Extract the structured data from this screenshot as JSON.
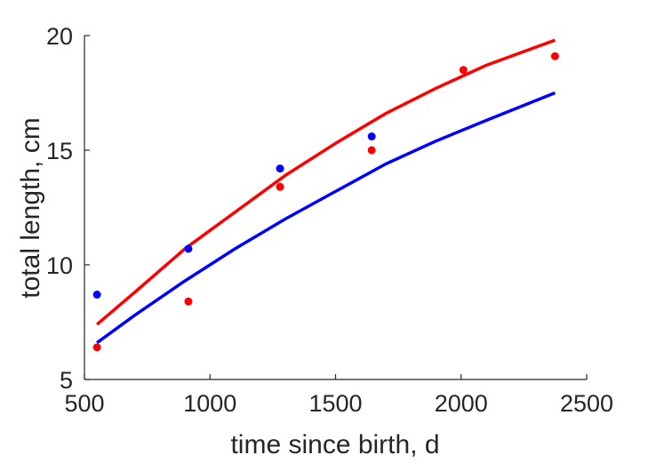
{
  "chart_data": {
    "type": "scatter",
    "title": "",
    "xlabel": "time since birth, d",
    "ylabel": "total length, cm",
    "xlim": [
      500,
      2500
    ],
    "ylim": [
      5,
      20
    ],
    "xticks": [
      500,
      1000,
      1500,
      2000,
      2500
    ],
    "yticks": [
      5,
      10,
      15,
      20
    ],
    "grid": false,
    "legend": "none",
    "series": [
      {
        "color": "#0000ff",
        "points": {
          "x": [
            550,
            914,
            1279,
            1644
          ],
          "y": [
            8.7,
            10.7,
            14.2,
            15.6
          ]
        },
        "fit": {
          "x": [
            550,
            700,
            900,
            1100,
            1300,
            1500,
            1700,
            1900,
            2100,
            2374
          ],
          "y": [
            6.6,
            7.8,
            9.3,
            10.7,
            12.0,
            13.2,
            14.4,
            15.4,
            16.3,
            17.5
          ]
        }
      },
      {
        "color": "#ff0000",
        "points": {
          "x": [
            550,
            914,
            1279,
            1644,
            2009,
            2374
          ],
          "y": [
            6.4,
            8.4,
            13.4,
            15.0,
            18.5,
            19.1
          ]
        },
        "fit": {
          "x": [
            550,
            700,
            900,
            1100,
            1300,
            1500,
            1700,
            1900,
            2100,
            2374
          ],
          "y": [
            7.4,
            8.8,
            10.7,
            12.3,
            13.9,
            15.3,
            16.6,
            17.7,
            18.7,
            19.8
          ]
        }
      }
    ]
  }
}
